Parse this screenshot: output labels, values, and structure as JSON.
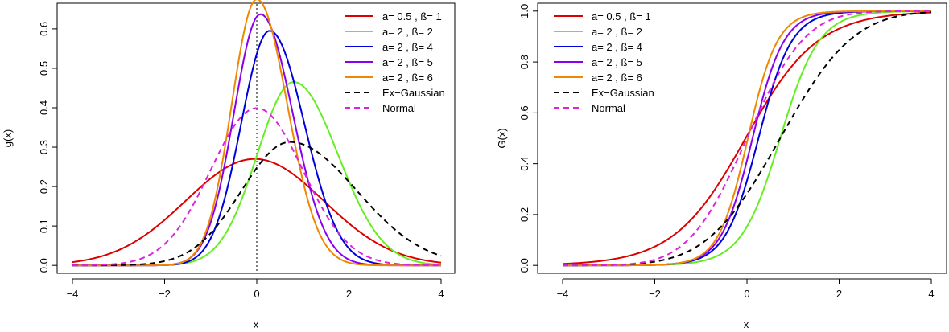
{
  "chart_data": [
    {
      "type": "line",
      "function": "density",
      "xlabel": "x",
      "ylabel": "g(x)",
      "xlim": [
        -4,
        4
      ],
      "ylim": [
        0,
        0.675
      ],
      "xticks": [
        "-4",
        "-2",
        "0",
        "2",
        "4"
      ],
      "yticks": [
        "0.0",
        "0.1",
        "0.2",
        "0.3",
        "0.4",
        "0.5",
        "0.6"
      ],
      "vline": {
        "x": 0,
        "style": "dotted",
        "color": "#000000"
      },
      "legend_position": "top-right",
      "series": [
        {
          "name": "a= 0.5 , ß= 1",
          "color": "#dd0000",
          "dash": "solid",
          "a": 0.5,
          "b": 1,
          "kind": "family"
        },
        {
          "name": "a= 2 , ß= 2",
          "color": "#66ee22",
          "dash": "solid",
          "a": 2,
          "b": 2,
          "kind": "family"
        },
        {
          "name": "a= 2 , ß= 4",
          "color": "#0000dd",
          "dash": "solid",
          "a": 2,
          "b": 4,
          "kind": "family"
        },
        {
          "name": "a= 2 , ß= 5",
          "color": "#8800ee",
          "dash": "solid",
          "a": 2,
          "b": 5,
          "kind": "family"
        },
        {
          "name": "a= 2 , ß= 6",
          "color": "#ee8800",
          "dash": "solid",
          "a": 2,
          "b": 6,
          "kind": "family"
        },
        {
          "name": "Ex−Gaussian",
          "color": "#000000",
          "dash": "dashed",
          "mu": 0,
          "sigma": 1,
          "lambda": 1.5,
          "kind": "exgauss"
        },
        {
          "name": "Normal",
          "color": "#dd22dd",
          "dash": "dashed",
          "mu": 0,
          "sigma": 1,
          "kind": "normal"
        }
      ]
    },
    {
      "type": "line",
      "function": "cdf",
      "xlabel": "x",
      "ylabel": "G(x)",
      "xlim": [
        -4,
        4
      ],
      "ylim": [
        0,
        1
      ],
      "xticks": [
        "-4",
        "-2",
        "0",
        "2",
        "4"
      ],
      "yticks": [
        "0.0",
        "0.2",
        "0.4",
        "0.6",
        "0.8",
        "1.0"
      ],
      "legend_position": "top-left",
      "series": [
        {
          "name": "a= 0.5 , ß= 1",
          "color": "#dd0000",
          "dash": "solid",
          "a": 0.5,
          "b": 1,
          "kind": "family"
        },
        {
          "name": "a= 2 , ß= 2",
          "color": "#66ee22",
          "dash": "solid",
          "a": 2,
          "b": 2,
          "kind": "family"
        },
        {
          "name": "a= 2 , ß= 4",
          "color": "#0000dd",
          "dash": "solid",
          "a": 2,
          "b": 4,
          "kind": "family"
        },
        {
          "name": "a= 2 , ß= 5",
          "color": "#8800ee",
          "dash": "solid",
          "a": 2,
          "b": 5,
          "kind": "family"
        },
        {
          "name": "a= 2 , ß= 6",
          "color": "#ee8800",
          "dash": "solid",
          "a": 2,
          "b": 6,
          "kind": "family"
        },
        {
          "name": "Ex−Gaussian",
          "color": "#000000",
          "dash": "dashed",
          "mu": 0,
          "sigma": 1,
          "lambda": 1.5,
          "kind": "exgauss"
        },
        {
          "name": "Normal",
          "color": "#dd22dd",
          "dash": "dashed",
          "mu": 0,
          "sigma": 1,
          "kind": "normal"
        }
      ]
    }
  ]
}
